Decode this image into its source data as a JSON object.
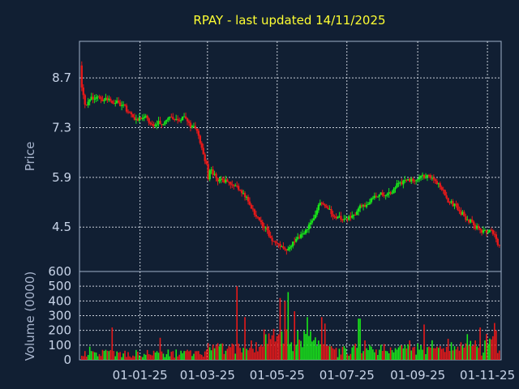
{
  "chart_data": {
    "type": "candlestick",
    "title": "RPAY - last updated 14/11/2025",
    "colors": {
      "background": "#111f33",
      "up": "#19e619",
      "down": "#e61919",
      "title": "#ffff33",
      "text": "#c8d4e8"
    },
    "price_panel": {
      "ylabel": "Price",
      "yticks": [
        8.7,
        7.3,
        5.9,
        4.5
      ],
      "ytick_labels": [
        "8.7",
        "7.3",
        "5.9",
        "4.5"
      ],
      "ylim": [
        3.25,
        9.73
      ]
    },
    "volume_panel": {
      "ylabel": "Volume (0000)",
      "yticks": [
        0,
        100,
        200,
        300,
        400,
        500,
        600
      ],
      "ytick_labels": [
        "0",
        "100",
        "200",
        "300",
        "400",
        "500",
        "600"
      ],
      "ylim": [
        0,
        600
      ]
    },
    "x_ticks": [
      "01-01-25",
      "01-03-25",
      "01-05-25",
      "01-07-25",
      "01-09-25",
      "01-11-25"
    ],
    "x_tick_days": [
      53,
      112,
      173,
      234,
      296,
      357
    ],
    "x_range_days": [
      0,
      369
    ],
    "grid": true,
    "price_path": [
      [
        0,
        8.9
      ],
      [
        5,
        7.9
      ],
      [
        15,
        8.2
      ],
      [
        30,
        8.1
      ],
      [
        45,
        7.6
      ],
      [
        65,
        7.45
      ],
      [
        90,
        7.55
      ],
      [
        103,
        7.25
      ],
      [
        113,
        6.1
      ],
      [
        125,
        5.8
      ],
      [
        135,
        5.8
      ],
      [
        148,
        5.2
      ],
      [
        160,
        4.45
      ],
      [
        172,
        4.1
      ],
      [
        182,
        3.8
      ],
      [
        197,
        4.45
      ],
      [
        212,
        5.2
      ],
      [
        222,
        4.75
      ],
      [
        235,
        4.75
      ],
      [
        255,
        5.2
      ],
      [
        275,
        5.6
      ],
      [
        297,
        5.95
      ],
      [
        312,
        5.75
      ],
      [
        325,
        5.2
      ],
      [
        345,
        4.6
      ],
      [
        362,
        4.3
      ],
      [
        370,
        3.75
      ]
    ],
    "volume_bursts": [
      [
        9,
        90
      ],
      [
        28,
        220
      ],
      [
        71,
        150
      ],
      [
        138,
        500
      ],
      [
        145,
        290
      ],
      [
        176,
        420
      ],
      [
        180,
        400
      ],
      [
        183,
        460
      ],
      [
        188,
        330
      ],
      [
        200,
        290
      ],
      [
        212,
        290
      ],
      [
        245,
        280
      ],
      [
        301,
        240
      ],
      [
        350,
        220
      ],
      [
        363,
        250
      ],
      [
        365,
        200
      ]
    ]
  }
}
